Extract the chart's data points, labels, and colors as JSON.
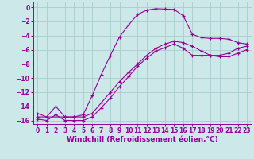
{
  "background_color": "#cce8e8",
  "grid_color": "#aacccc",
  "line_color": "#990099",
  "xlabel": "Windchill (Refroidissement éolien,°C)",
  "xlabel_fontsize": 6.5,
  "tick_fontsize": 5.5,
  "xlim": [
    -0.5,
    23.5
  ],
  "ylim": [
    -16.5,
    0.8
  ],
  "yticks": [
    0,
    -2,
    -4,
    -6,
    -8,
    -10,
    -12,
    -14,
    -16
  ],
  "xticks": [
    0,
    1,
    2,
    3,
    4,
    5,
    6,
    7,
    8,
    9,
    10,
    11,
    12,
    13,
    14,
    15,
    16,
    17,
    18,
    19,
    20,
    21,
    22,
    23
  ],
  "line1_x": [
    0,
    1,
    2,
    3,
    4,
    5,
    6,
    7,
    8,
    9,
    10,
    11,
    12,
    13,
    14,
    15,
    16,
    17,
    18,
    19,
    20,
    21,
    22,
    23
  ],
  "line1_y": [
    -15.0,
    -15.5,
    -14.0,
    -15.5,
    -15.5,
    -15.2,
    -12.5,
    -9.5,
    -6.8,
    -4.2,
    -2.5,
    -1.0,
    -0.4,
    -0.2,
    -0.25,
    -0.3,
    -1.2,
    -3.8,
    -4.3,
    -4.4,
    -4.4,
    -4.5,
    -5.0,
    -5.2
  ],
  "line2_x": [
    0,
    1,
    2,
    3,
    4,
    5,
    6,
    7,
    8,
    9,
    10,
    11,
    12,
    13,
    14,
    15,
    16,
    17,
    18,
    19,
    20,
    21,
    22,
    23
  ],
  "line2_y": [
    -15.8,
    -16.0,
    -15.2,
    -16.0,
    -16.0,
    -16.0,
    -15.5,
    -14.2,
    -12.8,
    -11.2,
    -9.8,
    -8.3,
    -7.2,
    -6.2,
    -5.7,
    -5.2,
    -5.8,
    -6.8,
    -6.8,
    -6.8,
    -6.8,
    -6.5,
    -5.8,
    -5.5
  ],
  "line3_x": [
    0,
    3,
    4,
    5,
    6,
    7,
    8,
    9,
    10,
    11,
    12,
    13,
    14,
    15,
    16,
    17,
    18,
    19,
    20,
    21,
    22,
    23
  ],
  "line3_y": [
    -15.5,
    -15.5,
    -15.5,
    -15.5,
    -15.0,
    -13.5,
    -12.0,
    -10.5,
    -9.2,
    -8.0,
    -6.8,
    -5.8,
    -5.2,
    -4.8,
    -5.0,
    -5.5,
    -6.2,
    -6.8,
    -7.0,
    -7.0,
    -6.5,
    -6.0
  ]
}
